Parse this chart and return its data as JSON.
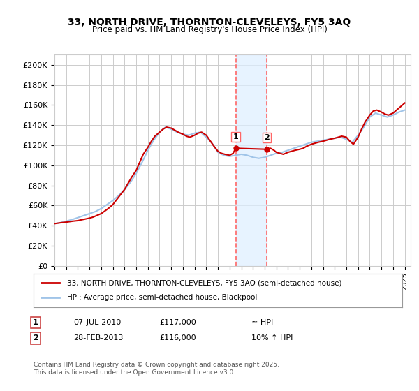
{
  "title": "33, NORTH DRIVE, THORNTON-CLEVELEYS, FY5 3AQ",
  "subtitle": "Price paid vs. HM Land Registry's House Price Index (HPI)",
  "ylim": [
    0,
    210000
  ],
  "yticks": [
    0,
    20000,
    40000,
    60000,
    80000,
    100000,
    120000,
    140000,
    160000,
    180000,
    200000
  ],
  "ytick_labels": [
    "£0",
    "£20K",
    "£40K",
    "£60K",
    "£80K",
    "£100K",
    "£120K",
    "£140K",
    "£160K",
    "£180K",
    "£200K"
  ],
  "xlim_start": 1995.0,
  "xlim_end": 2025.5,
  "background_color": "#ffffff",
  "plot_bg_color": "#ffffff",
  "grid_color": "#cccccc",
  "line1_color": "#cc0000",
  "line2_color": "#a0c4e8",
  "marker1_color": "#cc0000",
  "sale1_date": 2010.52,
  "sale1_price": 117000,
  "sale2_date": 2013.16,
  "sale2_price": 116000,
  "vline_color": "#ff6666",
  "shade_color": "#ddeeff",
  "legend1_label": "33, NORTH DRIVE, THORNTON-CLEVELEYS, FY5 3AQ (semi-detached house)",
  "legend2_label": "HPI: Average price, semi-detached house, Blackpool",
  "table_row1": [
    "1",
    "07-JUL-2010",
    "£117,000",
    "≈ HPI"
  ],
  "table_row2": [
    "2",
    "28-FEB-2013",
    "£116,000",
    "10% ↑ HPI"
  ],
  "footnote": "Contains HM Land Registry data © Crown copyright and database right 2025.\nThis data is licensed under the Open Government Licence v3.0.",
  "hpi_line": {
    "x": [
      1995.0,
      1995.5,
      1996.0,
      1996.5,
      1997.0,
      1997.5,
      1998.0,
      1998.5,
      1999.0,
      1999.5,
      2000.0,
      2000.5,
      2001.0,
      2001.5,
      2002.0,
      2002.5,
      2003.0,
      2003.5,
      2004.0,
      2004.5,
      2005.0,
      2005.5,
      2006.0,
      2006.5,
      2007.0,
      2007.5,
      2008.0,
      2008.5,
      2009.0,
      2009.5,
      2010.0,
      2010.5,
      2011.0,
      2011.5,
      2012.0,
      2012.5,
      2013.0,
      2013.5,
      2014.0,
      2014.5,
      2015.0,
      2015.5,
      2016.0,
      2016.5,
      2017.0,
      2017.5,
      2018.0,
      2018.5,
      2019.0,
      2019.5,
      2020.0,
      2020.5,
      2021.0,
      2021.5,
      2022.0,
      2022.5,
      2023.0,
      2023.5,
      2024.0,
      2024.5,
      2025.0
    ],
    "y": [
      42000,
      43000,
      44500,
      46000,
      48000,
      50000,
      52000,
      54000,
      57000,
      61000,
      65000,
      70000,
      76000,
      83000,
      92000,
      103000,
      115000,
      125000,
      133000,
      138000,
      136000,
      133000,
      131000,
      130000,
      132000,
      133000,
      128000,
      122000,
      113000,
      110000,
      109000,
      110000,
      111000,
      110000,
      108000,
      107000,
      108000,
      110000,
      112000,
      113000,
      115000,
      117000,
      119000,
      121000,
      123000,
      124000,
      125000,
      126000,
      127000,
      128000,
      126000,
      123000,
      130000,
      138000,
      148000,
      152000,
      150000,
      148000,
      150000,
      153000,
      155000
    ]
  },
  "price_line": {
    "x": [
      1995.0,
      1995.3,
      1995.6,
      1996.0,
      1996.3,
      1996.6,
      1997.0,
      1997.3,
      1997.6,
      1998.0,
      1998.3,
      1998.6,
      1999.0,
      1999.3,
      1999.6,
      2000.0,
      2000.3,
      2000.6,
      2001.0,
      2001.3,
      2001.6,
      2002.0,
      2002.3,
      2002.6,
      2003.0,
      2003.3,
      2003.6,
      2004.0,
      2004.3,
      2004.6,
      2005.0,
      2005.3,
      2005.6,
      2006.0,
      2006.3,
      2006.6,
      2007.0,
      2007.3,
      2007.6,
      2008.0,
      2008.3,
      2008.6,
      2009.0,
      2009.3,
      2009.6,
      2010.0,
      2010.3,
      2010.52,
      2013.16,
      2013.5,
      2013.8,
      2014.0,
      2014.3,
      2014.6,
      2015.0,
      2015.3,
      2015.6,
      2016.0,
      2016.3,
      2016.6,
      2017.0,
      2017.3,
      2017.6,
      2018.0,
      2018.3,
      2018.6,
      2019.0,
      2019.3,
      2019.6,
      2020.0,
      2020.3,
      2020.6,
      2021.0,
      2021.3,
      2021.6,
      2022.0,
      2022.3,
      2022.6,
      2023.0,
      2023.3,
      2023.6,
      2024.0,
      2024.3,
      2024.6,
      2025.0
    ],
    "y": [
      42000,
      42500,
      43000,
      43500,
      44000,
      44500,
      45000,
      45800,
      46500,
      47500,
      48500,
      50000,
      52000,
      54500,
      57000,
      61000,
      65500,
      70000,
      76000,
      82000,
      88000,
      95000,
      103000,
      111000,
      118000,
      124000,
      129000,
      133000,
      136000,
      138000,
      137000,
      135000,
      133000,
      131000,
      129000,
      128000,
      130000,
      132000,
      133000,
      130000,
      125000,
      120000,
      114000,
      112000,
      111000,
      110000,
      112000,
      117000,
      116000,
      117000,
      115000,
      113000,
      112000,
      111000,
      113000,
      114000,
      115000,
      116000,
      117000,
      119000,
      121000,
      122000,
      123000,
      124000,
      125000,
      126000,
      127000,
      128000,
      129000,
      128000,
      124000,
      121000,
      128000,
      136000,
      143000,
      150000,
      154000,
      155000,
      153000,
      151000,
      150000,
      152000,
      155000,
      158000,
      162000
    ]
  }
}
